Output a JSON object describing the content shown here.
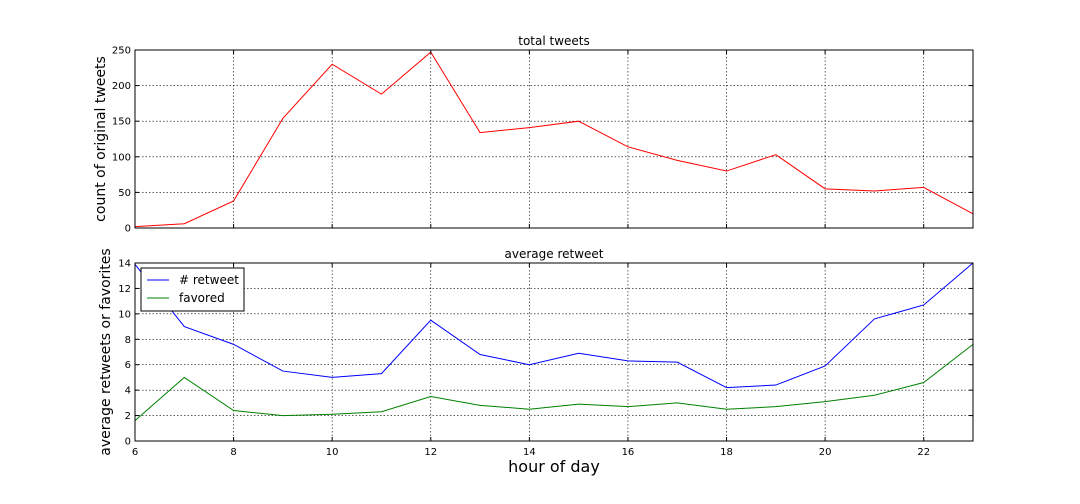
{
  "chart_data": [
    {
      "type": "line",
      "title": "total tweets",
      "xlabel": "",
      "ylabel": "count of original tweets",
      "xlim": [
        6,
        23
      ],
      "ylim": [
        0,
        250
      ],
      "x_ticks": [
        6,
        8,
        10,
        12,
        14,
        16,
        18,
        20,
        22
      ],
      "y_ticks": [
        0,
        50,
        100,
        150,
        200,
        250
      ],
      "x_tick_labels_visible": false,
      "grid": true,
      "x": [
        6,
        7,
        8,
        9,
        10,
        11,
        12,
        13,
        14,
        15,
        16,
        17,
        18,
        19,
        20,
        21,
        22,
        23
      ],
      "series": [
        {
          "values": [
            2,
            6,
            38,
            154,
            230,
            188,
            247,
            134,
            141,
            150,
            114,
            95,
            80,
            103,
            55,
            52,
            57,
            20
          ],
          "color": "#ff0000"
        }
      ]
    },
    {
      "type": "line",
      "title": "average retweet",
      "xlabel": "hour of day",
      "ylabel": "average retweets or favorites",
      "xlim": [
        6,
        23
      ],
      "ylim": [
        0,
        14
      ],
      "x_ticks": [
        6,
        8,
        10,
        12,
        14,
        16,
        18,
        20,
        22
      ],
      "y_ticks": [
        0,
        2,
        4,
        6,
        8,
        10,
        12,
        14
      ],
      "x_tick_labels_visible": true,
      "grid": true,
      "legend": "top-left",
      "x": [
        6,
        7,
        8,
        9,
        10,
        11,
        12,
        13,
        14,
        15,
        16,
        17,
        18,
        19,
        20,
        21,
        22,
        23
      ],
      "series": [
        {
          "name": "# retweet",
          "color": "#0000ff",
          "values": [
            13.9,
            9.0,
            7.6,
            5.5,
            5.0,
            5.3,
            9.5,
            6.8,
            6.0,
            6.9,
            6.3,
            6.2,
            4.2,
            4.4,
            5.9,
            9.6,
            10.7,
            14.0
          ]
        },
        {
          "name": "favored",
          "color": "#008000",
          "values": [
            1.6,
            5.0,
            2.4,
            2.0,
            2.1,
            2.3,
            3.5,
            2.8,
            2.5,
            2.9,
            2.7,
            3.0,
            2.5,
            2.7,
            3.1,
            3.6,
            4.6,
            7.6
          ]
        }
      ]
    }
  ]
}
